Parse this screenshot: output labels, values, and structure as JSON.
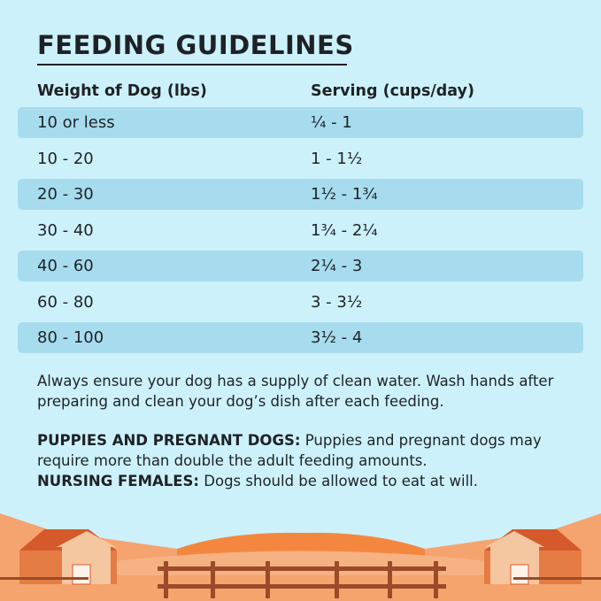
{
  "title": "FEEDING GUIDELINES",
  "table": {
    "headers": [
      "Weight of Dog (lbs)",
      "Serving (cups/day)"
    ],
    "rows": [
      {
        "weight": "10 or less",
        "serving": "¼ - 1"
      },
      {
        "weight": "10 - 20",
        "serving": "1 - 1½"
      },
      {
        "weight": "20 - 30",
        "serving": "1½ - 1¾"
      },
      {
        "weight": "30 - 40",
        "serving": "1¾ - 2¼"
      },
      {
        "weight": "40 - 60",
        "serving": "2¼ - 3"
      },
      {
        "weight": "60 - 80",
        "serving": "3 - 3½"
      },
      {
        "weight": "80 - 100",
        "serving": "3½ - 4"
      }
    ]
  },
  "notes": {
    "water": "Always ensure your dog has a supply of clean water. Wash hands after preparing and clean your dog’s dish after each feeding.",
    "puppies_label": "PUPPIES AND PREGNANT DOGS:",
    "puppies_text": " Puppies and pregnant dogs may require more than double the adult feeding amounts.",
    "nursing_label": "NURSING FEMALES:",
    "nursing_text": " Dogs should be allowed to eat at will."
  },
  "colors": {
    "background": "#cdf1fb",
    "row_shade": "#a7dcef",
    "text": "#1e2226",
    "illustration": "#f07a3a"
  },
  "illustration": "farm-scene-barns-fence"
}
